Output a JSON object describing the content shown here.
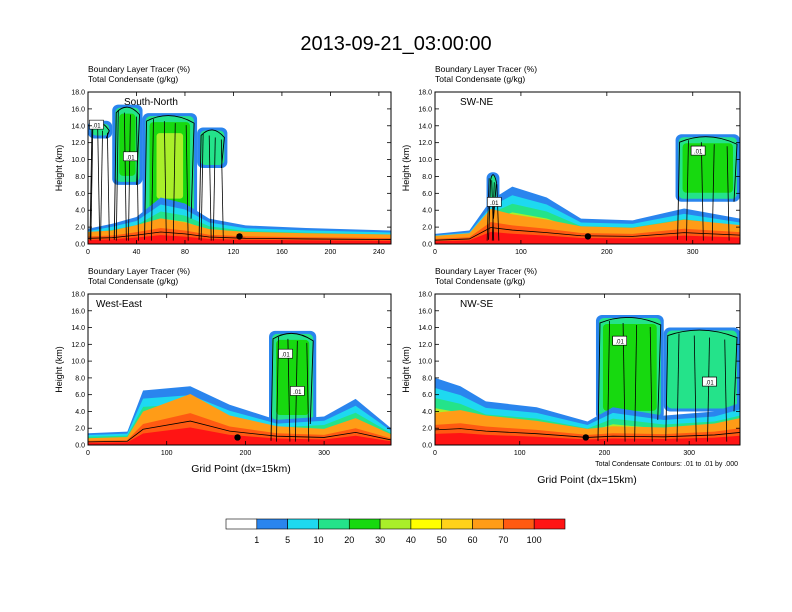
{
  "figure": {
    "title": "2013-09-21_03:00:00",
    "xaxis_title": "Grid Point (dx=15km)",
    "contour_note": "Total Condensate Contours: .01 to .01 by .000"
  },
  "colorbar": {
    "labels": [
      "1",
      "5",
      "10",
      "20",
      "30",
      "40",
      "50",
      "60",
      "70",
      "100"
    ],
    "colors": [
      "#ffffff",
      "#2a85ee",
      "#1ed9f0",
      "#24e38a",
      "#17d90f",
      "#a9ef2a",
      "#ffff00",
      "#ffd21a",
      "#ff9c17",
      "#ff5a12",
      "#ff1414"
    ]
  },
  "chart_data": [
    {
      "type": "heatmap",
      "name": "South-North",
      "header": [
        "Boundary Layer Tracer   (%)",
        "Total Condensate   (g/kg)"
      ],
      "ylabel": "Height (km)",
      "xlim": [
        0,
        250
      ],
      "ylim": [
        0,
        18
      ],
      "xticks": [
        "0",
        "40",
        "80",
        "120",
        "160",
        "200",
        "240"
      ],
      "yticks": [
        "0.0",
        "2.0",
        "4.0",
        "6.0",
        "8.0",
        "10.0",
        "12.0",
        "14.0",
        "16.0",
        "18.0"
      ],
      "contour_labels": [
        ".01",
        ".01"
      ],
      "marker_x": 125,
      "tracer_profile": [
        {
          "x": 0,
          "top": 1.8,
          "red": 0.9
        },
        {
          "x": 20,
          "top": 2.4,
          "red": 1.0
        },
        {
          "x": 40,
          "top": 3.2,
          "red": 1.4
        },
        {
          "x": 60,
          "top": 5.5,
          "red": 1.9
        },
        {
          "x": 80,
          "top": 4.8,
          "red": 1.6
        },
        {
          "x": 100,
          "top": 3.0,
          "red": 1.1
        },
        {
          "x": 130,
          "top": 2.2,
          "red": 0.9
        },
        {
          "x": 180,
          "top": 1.9,
          "red": 0.8
        },
        {
          "x": 250,
          "top": 1.6,
          "red": 0.7
        }
      ],
      "upper_clouds": [
        {
          "x0": 0,
          "x1": 20,
          "bottom": 12.5,
          "top": 14.6,
          "level": 1
        },
        {
          "x0": 20,
          "x1": 45,
          "bottom": 7.0,
          "top": 16.5,
          "level": 3
        },
        {
          "x0": 45,
          "x1": 90,
          "bottom": 3.0,
          "top": 15.5,
          "level": 4
        },
        {
          "x0": 90,
          "x1": 115,
          "bottom": 9.0,
          "top": 13.8,
          "level": 2
        }
      ]
    },
    {
      "type": "heatmap",
      "name": "SW-NE",
      "header": [
        "Boundary Layer Tracer   (%)",
        "Total Condensate   (g/kg)"
      ],
      "ylabel": "Height (km)",
      "xlim": [
        0,
        355
      ],
      "ylim": [
        0,
        18
      ],
      "xticks": [
        "0",
        "100",
        "200",
        "300"
      ],
      "yticks": [
        "0.0",
        "2.0",
        "4.0",
        "6.0",
        "8.0",
        "10.0",
        "12.0",
        "14.0",
        "16.0",
        "18.0"
      ],
      "contour_labels": [
        ".01",
        ".01",
        ".01"
      ],
      "marker_x": 178,
      "tracer_profile": [
        {
          "x": 0,
          "top": 1.2,
          "red": 0.6
        },
        {
          "x": 40,
          "top": 1.6,
          "red": 0.8
        },
        {
          "x": 65,
          "top": 5.2,
          "red": 2.6
        },
        {
          "x": 90,
          "top": 6.8,
          "red": 2.2
        },
        {
          "x": 130,
          "top": 5.5,
          "red": 1.8
        },
        {
          "x": 170,
          "top": 3.0,
          "red": 1.3
        },
        {
          "x": 230,
          "top": 2.8,
          "red": 1.2
        },
        {
          "x": 290,
          "top": 4.2,
          "red": 1.8
        },
        {
          "x": 355,
          "top": 3.0,
          "red": 1.4
        }
      ],
      "upper_clouds": [
        {
          "x0": 280,
          "x1": 355,
          "bottom": 5.0,
          "top": 13.0,
          "level": 3
        },
        {
          "x0": 60,
          "x1": 75,
          "bottom": 3.0,
          "top": 8.5,
          "level": 2
        }
      ]
    },
    {
      "type": "heatmap",
      "name": "West-East",
      "header": [
        "Boundary Layer Tracer   (%)",
        "Total Condensate   (g/kg)"
      ],
      "ylabel": "Height (km)",
      "xlim": [
        0,
        385
      ],
      "ylim": [
        0,
        18
      ],
      "xticks": [
        "0",
        "100",
        "200",
        "300"
      ],
      "yticks": [
        "0.0",
        "2.0",
        "4.0",
        "6.0",
        "8.0",
        "10.0",
        "12.0",
        "14.0",
        "16.0",
        "18.0"
      ],
      "contour_labels": [
        ".01",
        ".01"
      ],
      "marker_x": 190,
      "tracer_profile": [
        {
          "x": 0,
          "top": 1.4,
          "red": 0.5
        },
        {
          "x": 50,
          "top": 1.6,
          "red": 0.6
        },
        {
          "x": 70,
          "top": 6.5,
          "red": 2.5
        },
        {
          "x": 130,
          "top": 7.0,
          "red": 3.8
        },
        {
          "x": 180,
          "top": 4.8,
          "red": 2.2
        },
        {
          "x": 240,
          "top": 3.0,
          "red": 1.4
        },
        {
          "x": 300,
          "top": 3.4,
          "red": 1.2
        },
        {
          "x": 340,
          "top": 5.5,
          "red": 2.0
        },
        {
          "x": 385,
          "top": 2.0,
          "red": 0.8
        }
      ],
      "upper_clouds": [
        {
          "x0": 230,
          "x1": 290,
          "bottom": 2.5,
          "top": 13.6,
          "level": 3
        }
      ]
    },
    {
      "type": "heatmap",
      "name": "NW-SE",
      "header": [
        "Boundary Layer Tracer   (%)",
        "Total Condensate   (g/kg)"
      ],
      "ylabel": "Height (km)",
      "xlim": [
        0,
        360
      ],
      "ylim": [
        0,
        18
      ],
      "xticks": [
        "0",
        "100",
        "200",
        "300"
      ],
      "yticks": [
        "0.0",
        "2.0",
        "4.0",
        "6.0",
        "8.0",
        "10.0",
        "12.0",
        "14.0",
        "16.0",
        "18.0"
      ],
      "contour_labels": [
        ".01",
        ".01",
        ".01",
        ".01"
      ],
      "marker_x": 178,
      "tracer_profile": [
        {
          "x": 0,
          "top": 8.0,
          "red": 2.4
        },
        {
          "x": 30,
          "top": 7.0,
          "red": 2.6
        },
        {
          "x": 60,
          "top": 5.2,
          "red": 2.2
        },
        {
          "x": 120,
          "top": 4.5,
          "red": 1.8
        },
        {
          "x": 180,
          "top": 2.8,
          "red": 1.2
        },
        {
          "x": 210,
          "top": 4.5,
          "red": 1.4
        },
        {
          "x": 270,
          "top": 3.5,
          "red": 1.3
        },
        {
          "x": 330,
          "top": 4.0,
          "red": 1.6
        },
        {
          "x": 360,
          "top": 5.0,
          "red": 2.0
        }
      ],
      "upper_clouds": [
        {
          "x0": 190,
          "x1": 270,
          "bottom": 3.0,
          "top": 15.5,
          "level": 3
        },
        {
          "x0": 270,
          "x1": 360,
          "bottom": 4.0,
          "top": 14.0,
          "level": 2
        }
      ]
    }
  ]
}
